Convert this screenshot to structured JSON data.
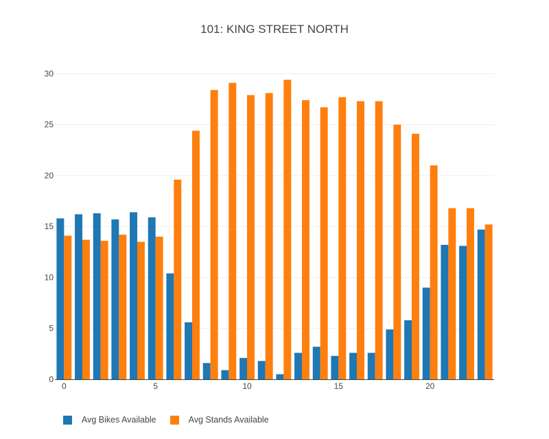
{
  "chart_data": {
    "type": "bar",
    "title": "101: KING STREET NORTH",
    "xlabel": "",
    "ylabel": "",
    "x": [
      0,
      1,
      2,
      3,
      4,
      5,
      6,
      7,
      8,
      9,
      10,
      11,
      12,
      13,
      14,
      15,
      16,
      17,
      18,
      19,
      20,
      21,
      22,
      23
    ],
    "x_ticks": [
      0,
      5,
      10,
      15,
      20
    ],
    "y_ticks": [
      0,
      5,
      10,
      15,
      20,
      25,
      30
    ],
    "xlim": [
      -0.5,
      23.5
    ],
    "ylim": [
      0,
      30.5
    ],
    "grid": true,
    "legend_position": "bottom-left",
    "series": [
      {
        "name": "Avg Bikes Available",
        "color": "#1f77b4",
        "values": [
          15.8,
          16.2,
          16.3,
          15.7,
          16.4,
          15.9,
          10.4,
          5.6,
          1.6,
          0.9,
          2.1,
          1.8,
          0.5,
          2.6,
          3.2,
          2.3,
          2.6,
          2.6,
          4.9,
          5.8,
          9.0,
          13.2,
          13.1,
          14.7
        ]
      },
      {
        "name": "Avg Stands Available",
        "color": "#ff7f0e",
        "values": [
          14.1,
          13.7,
          13.6,
          14.2,
          13.5,
          14.0,
          19.6,
          24.4,
          28.4,
          29.1,
          27.9,
          28.1,
          29.4,
          27.4,
          26.7,
          27.7,
          27.3,
          27.3,
          25.0,
          24.1,
          21.0,
          16.8,
          16.8,
          15.2
        ]
      }
    ]
  }
}
